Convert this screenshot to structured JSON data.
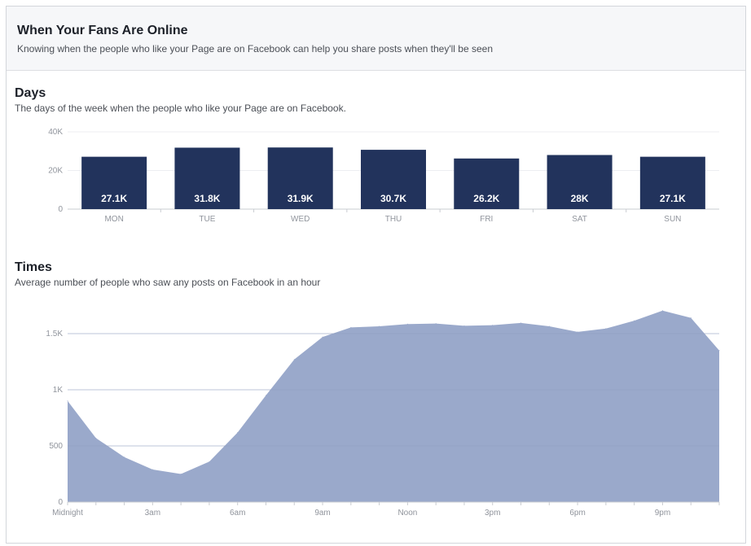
{
  "header": {
    "title": "When Your Fans Are Online",
    "subtitle": "Knowing when the people who like your Page are on Facebook can help you share posts when they'll be seen"
  },
  "days": {
    "title": "Days",
    "subtitle": "The days of the week when the people who like your Page are on Facebook."
  },
  "times": {
    "title": "Times",
    "subtitle": "Average number of people who saw any posts on Facebook in an hour"
  },
  "colors": {
    "bar": "#22335c",
    "area": "#9aa9cb",
    "grid": "#eceef1",
    "axis": "#c9ccd1"
  },
  "chart_data": [
    {
      "type": "bar",
      "categories": [
        "MON",
        "TUE",
        "WED",
        "THU",
        "FRI",
        "SAT",
        "SUN"
      ],
      "values": [
        27100,
        31800,
        31900,
        30700,
        26200,
        28000,
        27100
      ],
      "data_labels": [
        "27.1K",
        "31.8K",
        "31.9K",
        "30.7K",
        "26.2K",
        "28K",
        "27.1K"
      ],
      "yticks": [
        0,
        20000,
        40000
      ],
      "ytick_labels": [
        "0",
        "20K",
        "40K"
      ],
      "ylim": [
        0,
        40000
      ],
      "grid": true
    },
    {
      "type": "area",
      "x": [
        0,
        1,
        2,
        3,
        4,
        5,
        6,
        7,
        8,
        9,
        10,
        11,
        12,
        13,
        14,
        15,
        16,
        17,
        18,
        19,
        20,
        21,
        22,
        23
      ],
      "values": [
        900,
        570,
        400,
        290,
        250,
        360,
        620,
        950,
        1270,
        1470,
        1555,
        1565,
        1585,
        1590,
        1570,
        1575,
        1595,
        1565,
        1515,
        1545,
        1615,
        1705,
        1640,
        1350
      ],
      "xticks": [
        0,
        3,
        6,
        9,
        12,
        15,
        18,
        21
      ],
      "xtick_labels": [
        "Midnight",
        "3am",
        "6am",
        "9am",
        "Noon",
        "3pm",
        "6pm",
        "9pm"
      ],
      "yticks": [
        0,
        500,
        1000,
        1500
      ],
      "ytick_labels": [
        "0",
        "500",
        "1K",
        "1.5K"
      ],
      "ylim": [
        0,
        1800
      ],
      "grid": true
    }
  ]
}
